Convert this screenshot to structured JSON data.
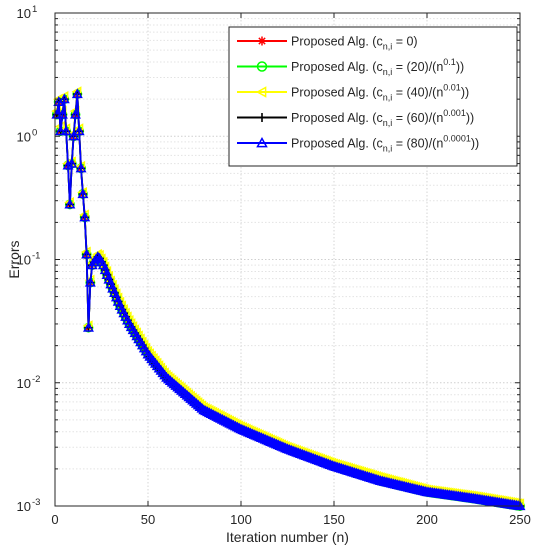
{
  "chart_data": {
    "type": "line",
    "xlabel": "Iteration number (n)",
    "ylabel": "Errors",
    "xlim": [
      0,
      250
    ],
    "ylim": [
      0.001,
      10
    ],
    "yscale": "log",
    "grid": true,
    "legend_position": "top-right",
    "x_ticks": [
      {
        "value": 0,
        "label": "0"
      },
      {
        "value": 50,
        "label": "50"
      },
      {
        "value": 100,
        "label": "100"
      },
      {
        "value": 150,
        "label": "150"
      },
      {
        "value": 200,
        "label": "200"
      },
      {
        "value": 250,
        "label": "250"
      }
    ],
    "y_ticks": [
      {
        "value": 0.001,
        "base": "10",
        "exp": "-3"
      },
      {
        "value": 0.01,
        "base": "10",
        "exp": "-2"
      },
      {
        "value": 0.1,
        "base": "10",
        "exp": "-1"
      },
      {
        "value": 1,
        "base": "10",
        "exp": "0"
      },
      {
        "value": 10,
        "base": "10",
        "exp": "1"
      }
    ],
    "series": [
      {
        "name": "Proposed Alg. (c_{n,i} = 0)",
        "legend": {
          "pre": "Proposed Alg. (c",
          "sub": "n,i",
          "mid": " = 0)",
          "sup": "",
          "post": ""
        },
        "color": "#ff0000",
        "marker": "asterisk",
        "x": [
          1,
          2,
          3,
          4,
          5,
          6,
          7,
          8,
          9,
          10,
          11,
          12,
          13,
          14,
          15,
          16,
          17,
          18,
          19,
          20,
          21,
          22,
          23,
          24,
          26,
          28,
          30,
          35,
          40,
          50,
          60,
          80,
          100,
          125,
          150,
          175,
          200,
          225,
          250
        ],
        "y": [
          1.5,
          1.9,
          1.1,
          1.5,
          2.0,
          1.1,
          0.58,
          0.28,
          0.6,
          1.0,
          1.5,
          2.2,
          1.1,
          0.55,
          0.34,
          0.22,
          0.11,
          0.028,
          0.065,
          0.09,
          0.095,
          0.1,
          0.105,
          0.102,
          0.09,
          0.075,
          0.063,
          0.042,
          0.03,
          0.017,
          0.011,
          0.006,
          0.0042,
          0.0029,
          0.0021,
          0.0016,
          0.0013,
          0.00115,
          0.001
        ]
      },
      {
        "name": "Proposed Alg. (c_{n,i} = (20)/(n^{0.1}))",
        "legend": {
          "pre": "Proposed  Alg. (c",
          "sub": "n,i",
          "mid": " = (20)/(n",
          "sup": "0.1",
          "post": "))"
        },
        "color": "#00ff00",
        "marker": "circle",
        "x": [
          1,
          2,
          3,
          4,
          5,
          6,
          7,
          8,
          9,
          10,
          11,
          12,
          13,
          14,
          15,
          16,
          17,
          18,
          19,
          20,
          21,
          22,
          23,
          24,
          26,
          28,
          30,
          35,
          40,
          50,
          60,
          80,
          100,
          125,
          150,
          175,
          200,
          225,
          250
        ],
        "y": [
          1.5,
          1.9,
          1.1,
          1.5,
          2.0,
          1.1,
          0.58,
          0.28,
          0.6,
          1.0,
          1.5,
          2.2,
          1.1,
          0.55,
          0.34,
          0.22,
          0.11,
          0.028,
          0.065,
          0.09,
          0.095,
          0.1,
          0.105,
          0.102,
          0.09,
          0.075,
          0.063,
          0.042,
          0.03,
          0.017,
          0.011,
          0.006,
          0.0042,
          0.0029,
          0.0021,
          0.0016,
          0.0013,
          0.00115,
          0.001
        ]
      },
      {
        "name": "Proposed Alg. (c_{n,i} = (40)/(n^{0.01}))",
        "legend": {
          "pre": "Proposed  Alg. (c",
          "sub": "n,i",
          "mid": " = (40)/(n",
          "sup": "0.01",
          "post": "))"
        },
        "color": "#ffff00",
        "marker": "triangle-left",
        "x": [
          1,
          2,
          3,
          4,
          5,
          6,
          7,
          8,
          9,
          10,
          11,
          12,
          13,
          14,
          15,
          16,
          17,
          18,
          19,
          20,
          21,
          22,
          23,
          24,
          26,
          28,
          30,
          35,
          40,
          50,
          60,
          80,
          100,
          125,
          150,
          175,
          200,
          225,
          250
        ],
        "y": [
          1.6,
          2.0,
          1.2,
          1.6,
          2.1,
          1.15,
          0.6,
          0.29,
          0.62,
          1.05,
          1.6,
          2.3,
          1.15,
          0.57,
          0.35,
          0.23,
          0.115,
          0.029,
          0.068,
          0.093,
          0.1,
          0.105,
          0.11,
          0.108,
          0.095,
          0.08,
          0.067,
          0.045,
          0.032,
          0.018,
          0.0115,
          0.0063,
          0.0044,
          0.003,
          0.0022,
          0.0017,
          0.00135,
          0.0012,
          0.00104
        ]
      },
      {
        "name": "Proposed Alg. (c_{n,i} = (60)/(n^{0.001}))",
        "legend": {
          "pre": "Proposed  Alg. (c",
          "sub": "n,i",
          "mid": " = (60)/(n",
          "sup": "0.001",
          "post": "))"
        },
        "color": "#000000",
        "marker": "plus",
        "x": [
          1,
          2,
          3,
          4,
          5,
          6,
          7,
          8,
          9,
          10,
          11,
          12,
          13,
          14,
          15,
          16,
          17,
          18,
          19,
          20,
          21,
          22,
          23,
          24,
          26,
          28,
          30,
          35,
          40,
          50,
          60,
          80,
          100,
          125,
          150,
          175,
          200,
          225,
          250
        ],
        "y": [
          1.5,
          1.9,
          1.1,
          1.5,
          2.0,
          1.1,
          0.58,
          0.28,
          0.6,
          1.0,
          1.5,
          2.2,
          1.1,
          0.55,
          0.34,
          0.22,
          0.11,
          0.028,
          0.065,
          0.09,
          0.095,
          0.1,
          0.105,
          0.102,
          0.09,
          0.075,
          0.063,
          0.042,
          0.03,
          0.017,
          0.011,
          0.006,
          0.0042,
          0.0029,
          0.0021,
          0.0016,
          0.0013,
          0.00115,
          0.001
        ]
      },
      {
        "name": "Proposed Alg. (c_{n,i} = (80)/(n^{0.0001}))",
        "legend": {
          "pre": "Proposed  Alg. (c",
          "sub": "n,i",
          "mid": " = (80)/(n",
          "sup": "0.0001",
          "post": "))"
        },
        "color": "#0000ff",
        "marker": "triangle-up",
        "x": [
          1,
          2,
          3,
          4,
          5,
          6,
          7,
          8,
          9,
          10,
          11,
          12,
          13,
          14,
          15,
          16,
          17,
          18,
          19,
          20,
          21,
          22,
          23,
          24,
          26,
          28,
          30,
          35,
          40,
          50,
          60,
          80,
          100,
          125,
          150,
          175,
          200,
          225,
          250
        ],
        "y": [
          1.5,
          1.9,
          1.1,
          1.5,
          2.0,
          1.1,
          0.58,
          0.28,
          0.6,
          1.0,
          1.5,
          2.2,
          1.1,
          0.55,
          0.34,
          0.22,
          0.11,
          0.028,
          0.065,
          0.09,
          0.095,
          0.1,
          0.105,
          0.102,
          0.09,
          0.075,
          0.063,
          0.042,
          0.03,
          0.017,
          0.011,
          0.006,
          0.0042,
          0.0029,
          0.0021,
          0.0016,
          0.0013,
          0.00115,
          0.001
        ]
      }
    ]
  }
}
